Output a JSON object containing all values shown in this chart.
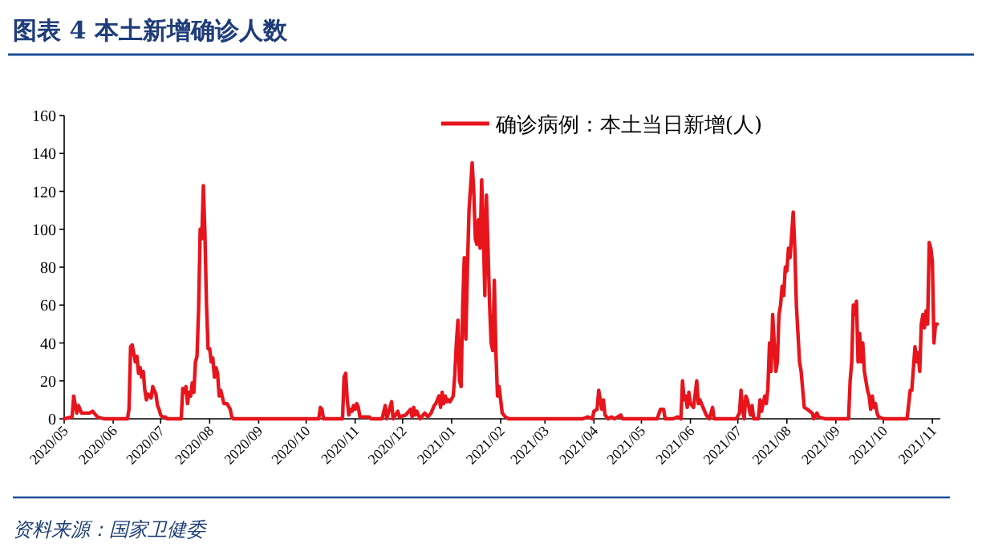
{
  "chart_data": {
    "type": "line",
    "title": "图表 4   本土新增确诊人数",
    "annotations": [
      "资料来源：国家卫健委"
    ],
    "legend": "top",
    "line_style": "solid",
    "grid": false,
    "xlim": [
      "2020-05-01",
      "2021-11-06"
    ],
    "ylim": [
      0,
      160
    ],
    "yticks": [
      0,
      20,
      40,
      60,
      80,
      100,
      120,
      140,
      160
    ],
    "xticks": [
      {
        "value": "2020-05-01",
        "label": "2020/05"
      },
      {
        "value": "2020-06-01",
        "label": "2020/06"
      },
      {
        "value": "2020-07-01",
        "label": "2020/07"
      },
      {
        "value": "2020-08-01",
        "label": "2020/08"
      },
      {
        "value": "2020-09-01",
        "label": "2020/09"
      },
      {
        "value": "2020-10-01",
        "label": "2020/10"
      },
      {
        "value": "2020-11-01",
        "label": "2020/11"
      },
      {
        "value": "2020-12-01",
        "label": "2020/12"
      },
      {
        "value": "2021-01-01",
        "label": "2021/01"
      },
      {
        "value": "2021-02-01",
        "label": "2021/02"
      },
      {
        "value": "2021-03-01",
        "label": "2021/03"
      },
      {
        "value": "2021-04-01",
        "label": "2021/04"
      },
      {
        "value": "2021-05-01",
        "label": "2021/05"
      },
      {
        "value": "2021-06-01",
        "label": "2021/06"
      },
      {
        "value": "2021-07-01",
        "label": "2021/07"
      },
      {
        "value": "2021-08-01",
        "label": "2021/08"
      },
      {
        "value": "2021-09-01",
        "label": "2021/09"
      },
      {
        "value": "2021-10-01",
        "label": "2021/10"
      },
      {
        "value": "2021-11-01",
        "label": "2021/11"
      }
    ],
    "series": [
      {
        "name": "确诊病例：本土当日新增(人)",
        "color": "#e8141c",
        "x": [
          "2020-05-01",
          "2020-05-06",
          "2020-05-07",
          "2020-05-09",
          "2020-05-10",
          "2020-05-12",
          "2020-05-17",
          "2020-05-19",
          "2020-05-22",
          "2020-05-26",
          "2020-06-10",
          "2020-06-11",
          "2020-06-12",
          "2020-06-13",
          "2020-06-15",
          "2020-06-16",
          "2020-06-17",
          "2020-06-18",
          "2020-06-19",
          "2020-06-20",
          "2020-06-21",
          "2020-06-22",
          "2020-06-23",
          "2020-06-25",
          "2020-06-26",
          "2020-06-27",
          "2020-06-28",
          "2020-06-29",
          "2020-06-30",
          "2020-07-01",
          "2020-07-02",
          "2020-07-04",
          "2020-07-05",
          "2020-07-14",
          "2020-07-15",
          "2020-07-16",
          "2020-07-17",
          "2020-07-18",
          "2020-07-19",
          "2020-07-20",
          "2020-07-21",
          "2020-07-22",
          "2020-07-23",
          "2020-07-24",
          "2020-07-25",
          "2020-07-26",
          "2020-07-27",
          "2020-07-28",
          "2020-07-29",
          "2020-07-30",
          "2020-07-31",
          "2020-08-01",
          "2020-08-02",
          "2020-08-03",
          "2020-08-04",
          "2020-08-05",
          "2020-08-06",
          "2020-08-07",
          "2020-08-08",
          "2020-08-10",
          "2020-08-12",
          "2020-08-14",
          "2020-08-15",
          "2020-08-16",
          "2020-10-09",
          "2020-10-10",
          "2020-10-11",
          "2020-10-12",
          "2020-10-24",
          "2020-10-25",
          "2020-10-26",
          "2020-10-27",
          "2020-10-28",
          "2020-10-29",
          "2020-10-30",
          "2020-10-31",
          "2020-11-01",
          "2020-11-02",
          "2020-11-03",
          "2020-11-04",
          "2020-11-10",
          "2020-11-11",
          "2020-11-18",
          "2020-11-20",
          "2020-11-21",
          "2020-11-24",
          "2020-11-25",
          "2020-11-28",
          "2020-11-29",
          "2020-12-03",
          "2020-12-06",
          "2020-12-07",
          "2020-12-08",
          "2020-12-09",
          "2020-12-10",
          "2020-12-12",
          "2020-12-15",
          "2020-12-17",
          "2020-12-19",
          "2020-12-21",
          "2020-12-22",
          "2020-12-24",
          "2020-12-25",
          "2020-12-26",
          "2020-12-27",
          "2020-12-28",
          "2020-12-29",
          "2020-12-30",
          "2020-12-31",
          "2021-01-02",
          "2021-01-03",
          "2021-01-04",
          "2021-01-05",
          "2021-01-06",
          "2021-01-07",
          "2021-01-08",
          "2021-01-09",
          "2021-01-10",
          "2021-01-11",
          "2021-01-12",
          "2021-01-14",
          "2021-01-15",
          "2021-01-16",
          "2021-01-17",
          "2021-01-18",
          "2021-01-19",
          "2021-01-20",
          "2021-01-21",
          "2021-01-22",
          "2021-01-23",
          "2021-01-24",
          "2021-01-25",
          "2021-01-26",
          "2021-01-27",
          "2021-01-28",
          "2021-01-29",
          "2021-01-30",
          "2021-01-31",
          "2021-02-01",
          "2021-02-02",
          "2021-02-04",
          "2021-02-06",
          "2021-03-25",
          "2021-03-28",
          "2021-03-31",
          "2021-04-01",
          "2021-04-03",
          "2021-04-04",
          "2021-04-05",
          "2021-04-06",
          "2021-04-07",
          "2021-04-08",
          "2021-04-10",
          "2021-04-12",
          "2021-04-14",
          "2021-04-18",
          "2021-04-19",
          "2021-05-11",
          "2021-05-13",
          "2021-05-15",
          "2021-05-16",
          "2021-05-21",
          "2021-05-24",
          "2021-05-26",
          "2021-05-27",
          "2021-05-28",
          "2021-05-29",
          "2021-05-30",
          "2021-05-31",
          "2021-06-01",
          "2021-06-03",
          "2021-06-05",
          "2021-06-06",
          "2021-06-07",
          "2021-06-09",
          "2021-06-11",
          "2021-06-13",
          "2021-06-15",
          "2021-06-16",
          "2021-06-30",
          "2021-07-02",
          "2021-07-03",
          "2021-07-04",
          "2021-07-05",
          "2021-07-06",
          "2021-07-07",
          "2021-07-09",
          "2021-07-10",
          "2021-07-11",
          "2021-07-14",
          "2021-07-15",
          "2021-07-16",
          "2021-07-18",
          "2021-07-19",
          "2021-07-20",
          "2021-07-21",
          "2021-07-22",
          "2021-07-23",
          "2021-07-24",
          "2021-07-25",
          "2021-07-26",
          "2021-07-27",
          "2021-07-28",
          "2021-07-29",
          "2021-07-30",
          "2021-07-31",
          "2021-08-01",
          "2021-08-02",
          "2021-08-03",
          "2021-08-04",
          "2021-08-05",
          "2021-08-06",
          "2021-08-07",
          "2021-08-09",
          "2021-08-10",
          "2021-08-12",
          "2021-08-14",
          "2021-08-17",
          "2021-08-18",
          "2021-08-20",
          "2021-08-21",
          "2021-08-25",
          "2021-09-09",
          "2021-09-10",
          "2021-09-11",
          "2021-09-12",
          "2021-09-13",
          "2021-09-14",
          "2021-09-15",
          "2021-09-16",
          "2021-09-17",
          "2021-09-18",
          "2021-09-19",
          "2021-09-21",
          "2021-09-22",
          "2021-09-23",
          "2021-09-24",
          "2021-09-25",
          "2021-09-26",
          "2021-09-27",
          "2021-09-28",
          "2021-10-01",
          "2021-10-16",
          "2021-10-18",
          "2021-10-19",
          "2021-10-21",
          "2021-10-22",
          "2021-10-23",
          "2021-10-24",
          "2021-10-25",
          "2021-10-26",
          "2021-10-27",
          "2021-10-28",
          "2021-10-29",
          "2021-10-30",
          "2021-10-31",
          "2021-11-01",
          "2021-11-02",
          "2021-11-03",
          "2021-11-04"
        ],
        "values": [
          0,
          1,
          12,
          3,
          7,
          3,
          3,
          4,
          1,
          0,
          0,
          5,
          38,
          39,
          30,
          33,
          24,
          27,
          22,
          25,
          15,
          10,
          13,
          11,
          17,
          15,
          13,
          7,
          5,
          2,
          1,
          1,
          0,
          0,
          16,
          14,
          17,
          8,
          14,
          12,
          19,
          14,
          30,
          33,
          58,
          100,
          95,
          123,
          98,
          60,
          37,
          37,
          30,
          32,
          22,
          27,
          24,
          12,
          15,
          8,
          8,
          5,
          1,
          0,
          0,
          6,
          5,
          0,
          0,
          22,
          24,
          10,
          2,
          5,
          4,
          7,
          5,
          8,
          6,
          1,
          1,
          0,
          0,
          7,
          0,
          9,
          0,
          4,
          1,
          2,
          5,
          1,
          6,
          2,
          4,
          0,
          3,
          1,
          3,
          7,
          8,
          12,
          6,
          14,
          8,
          12,
          9,
          10,
          9,
          12,
          23,
          40,
          52,
          20,
          17,
          60,
          85,
          42,
          80,
          110,
          135,
          120,
          95,
          92,
          105,
          90,
          126,
          100,
          65,
          118,
          90,
          60,
          40,
          36,
          73,
          35,
          12,
          17,
          10,
          3,
          1,
          0,
          0,
          1,
          0,
          4,
          5,
          15,
          10,
          5,
          10,
          2,
          0,
          1,
          0,
          2,
          0,
          0,
          5,
          5,
          0,
          0,
          1,
          0,
          20,
          10,
          12,
          6,
          14,
          8,
          6,
          20,
          8,
          10,
          6,
          2,
          0,
          6,
          0,
          0,
          3,
          15,
          5,
          0,
          12,
          10,
          2,
          7,
          0,
          0,
          10,
          4,
          12,
          8,
          16,
          40,
          25,
          55,
          40,
          25,
          30,
          55,
          60,
          70,
          65,
          80,
          78,
          90,
          85,
          97,
          109,
          90,
          60,
          30,
          25,
          6,
          5,
          3,
          0,
          3,
          1,
          0,
          0,
          20,
          30,
          60,
          55,
          62,
          30,
          45,
          30,
          40,
          25,
          15,
          12,
          5,
          12,
          6,
          8,
          3,
          1,
          0,
          0,
          15,
          15,
          38,
          30,
          35,
          25,
          50,
          55,
          48,
          57,
          50,
          93,
          90,
          83,
          40,
          50,
          50
        ]
      }
    ]
  }
}
